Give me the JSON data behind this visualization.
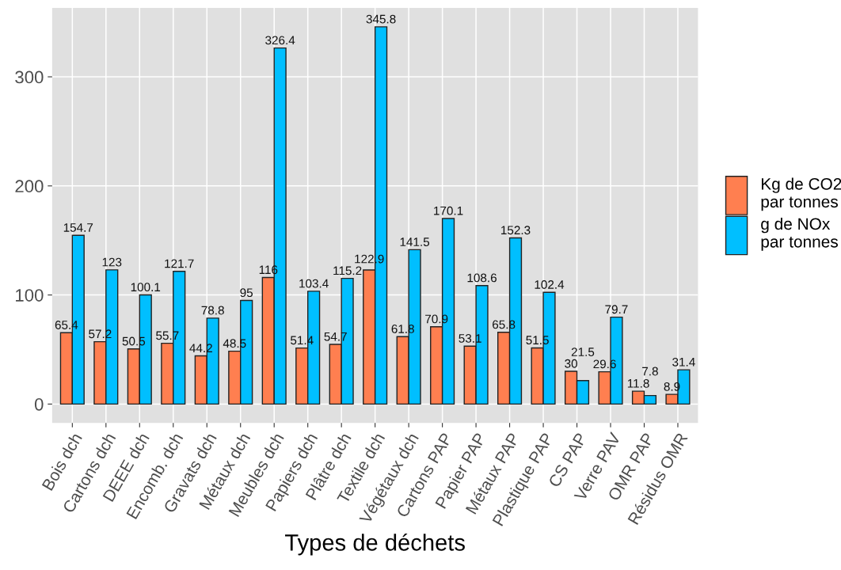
{
  "chart_data": {
    "type": "bar",
    "xlabel": "Types de déchets",
    "categories": [
      "Bois dch",
      "Cartons dch",
      "DEEE dch",
      "Encomb. dch",
      "Gravats dch",
      "Métaux dch",
      "Meubles dch",
      "Papiers dch",
      "Plâtre dch",
      "Textile dch",
      "Végétaux dch",
      "Cartons PAP",
      "Papier PAP",
      "Métaux PAP",
      "Plastique PAP",
      "CS PAP",
      "Verre PAV",
      "OMR PAP",
      "Résidus OMR"
    ],
    "series": [
      {
        "name": "Kg de CO2\npar tonnes",
        "color": "#ff7f50",
        "values": [
          65.4,
          57.2,
          50.5,
          55.7,
          44.2,
          48.5,
          116,
          51.4,
          54.7,
          122.9,
          61.8,
          70.9,
          53.1,
          65.8,
          51.5,
          30,
          29.6,
          11.8,
          8.9
        ]
      },
      {
        "name": "g de NOx\npar tonnes",
        "color": "#00bfff",
        "values": [
          154.7,
          123,
          100.1,
          121.7,
          78.8,
          95,
          326.4,
          103.4,
          115.2,
          345.8,
          141.5,
          170.1,
          108.6,
          152.3,
          102.4,
          21.5,
          79.7,
          7.8,
          31.4
        ]
      }
    ],
    "ylim": [
      -17.3,
      363.1
    ],
    "yticks": [
      0,
      100,
      200,
      300
    ],
    "grid": true,
    "legend": "right",
    "data_labels": true
  }
}
